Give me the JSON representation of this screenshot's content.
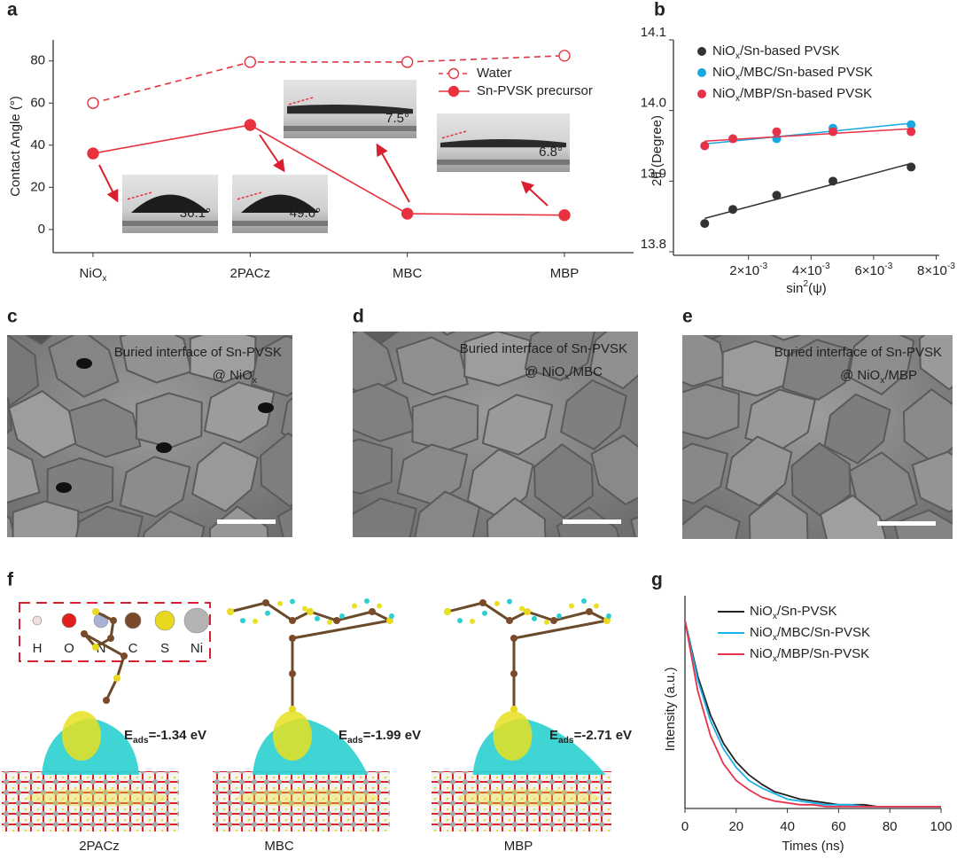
{
  "chart_data": [
    {
      "panel": "a",
      "type": "line",
      "ylabel": "Contact Angle (°)",
      "categories": [
        "NiOx",
        "2PACz",
        "MBC",
        "MBP"
      ],
      "ylim": [
        -11,
        90
      ],
      "yticks": [
        0,
        20,
        40,
        60,
        80
      ],
      "series": [
        {
          "name": "Water",
          "color": "#e8323f",
          "dashed": true,
          "marker": "open",
          "values": [
            60,
            79.5,
            79.5,
            82.5
          ]
        },
        {
          "name": "Sn-PVSK  precursor",
          "color": "#e8323f",
          "dashed": false,
          "marker": "filled",
          "values": [
            36.1,
            49.6,
            7.5,
            6.8
          ],
          "value_labels": [
            "36.1°",
            "49.6°",
            "7.5°",
            "6.8°"
          ]
        }
      ]
    },
    {
      "panel": "b",
      "type": "scatter",
      "xlabel": "sin2(ψ)",
      "ylabel": "2θ (Degree)",
      "x": [
        0.0006,
        0.0015,
        0.0029,
        0.0047,
        0.0072
      ],
      "xlim": [
        -0.0004,
        0.0081
      ],
      "xticks": [
        {
          "value": 0.002,
          "label": "2×10-3"
        },
        {
          "value": 0.004,
          "label": "4×10-3"
        },
        {
          "value": 0.006,
          "label": "6×10-3"
        },
        {
          "value": 0.008,
          "label": "8×10-3"
        }
      ],
      "ylim": [
        13.795,
        14.1
      ],
      "yticks": [
        13.8,
        13.9,
        {
          "value": 14,
          "label": "14.0"
        },
        14.1
      ],
      "fit": true,
      "series": [
        {
          "name": "NiOx/Sn-based PVSK",
          "color": "#333333",
          "values": [
            13.84,
            13.86,
            13.88,
            13.9,
            13.92
          ]
        },
        {
          "name": "NiOx/MBC/Sn-based PVSK",
          "color": "#1aa8e0",
          "values": [
            13.95,
            13.96,
            13.96,
            13.975,
            13.98
          ]
        },
        {
          "name": "NiOx/MBP/Sn-based PVSK",
          "color": "#e8324a",
          "values": [
            13.95,
            13.96,
            13.97,
            13.97,
            13.97
          ]
        }
      ]
    },
    {
      "panel": "g",
      "type": "line",
      "xlabel": "Times (ns)",
      "ylabel": "Intensity (a.u.)",
      "x": [
        0,
        5,
        10,
        15,
        20,
        25,
        30,
        35,
        40,
        45,
        50,
        55,
        60,
        65,
        70,
        75,
        80,
        85,
        90,
        95,
        100
      ],
      "xlim": [
        0,
        100
      ],
      "xticks": [
        0,
        20,
        40,
        60,
        80,
        100
      ],
      "ylim": [
        -0.01,
        1.0
      ],
      "series": [
        {
          "name": "NiOx/Sn-PVSK",
          "color": "#222222",
          "values": [
            1,
            0.7,
            0.49,
            0.34,
            0.24,
            0.17,
            0.12,
            0.08,
            0.06,
            0.04,
            0.03,
            0.02,
            0.01,
            0.01,
            0.01,
            0,
            0,
            0,
            0,
            0,
            0
          ]
        },
        {
          "name": "NiOx/MBC/Sn-PVSK",
          "color": "#1ab0e8",
          "values": [
            1,
            0.68,
            0.46,
            0.31,
            0.21,
            0.14,
            0.1,
            0.07,
            0.04,
            0.03,
            0.02,
            0.01,
            0.01,
            0.01,
            0,
            0,
            0,
            0,
            0,
            0,
            0
          ]
        },
        {
          "name": "NiOx/MBP/Sn-PVSK",
          "color": "#e8324a",
          "values": [
            1,
            0.62,
            0.38,
            0.23,
            0.14,
            0.09,
            0.05,
            0.03,
            0.02,
            0.01,
            0.01,
            0,
            0,
            0,
            0,
            0,
            0,
            0,
            0,
            0,
            0
          ]
        }
      ]
    }
  ],
  "sem_images": [
    {
      "panel": "c",
      "caption": "Buried interface of Sn-PVSK",
      "substrate": "@ NiOx"
    },
    {
      "panel": "d",
      "caption": "Buried interface of Sn-PVSK",
      "substrate": "@ NiOx/MBC"
    },
    {
      "panel": "e",
      "caption": "Buried interface of Sn-PVSK",
      "substrate": "@ NiOx/MBP"
    }
  ],
  "dft": {
    "panel": "f",
    "legend": [
      "H",
      "O",
      "N",
      "C",
      "S",
      "Ni"
    ],
    "structures": [
      {
        "name": "2PACz",
        "energy": "Eads=-1.34 eV"
      },
      {
        "name": "MBC",
        "energy": "Eads=-1.99 eV"
      },
      {
        "name": "MBP",
        "energy": "Eads=-2.71 eV"
      }
    ]
  }
}
